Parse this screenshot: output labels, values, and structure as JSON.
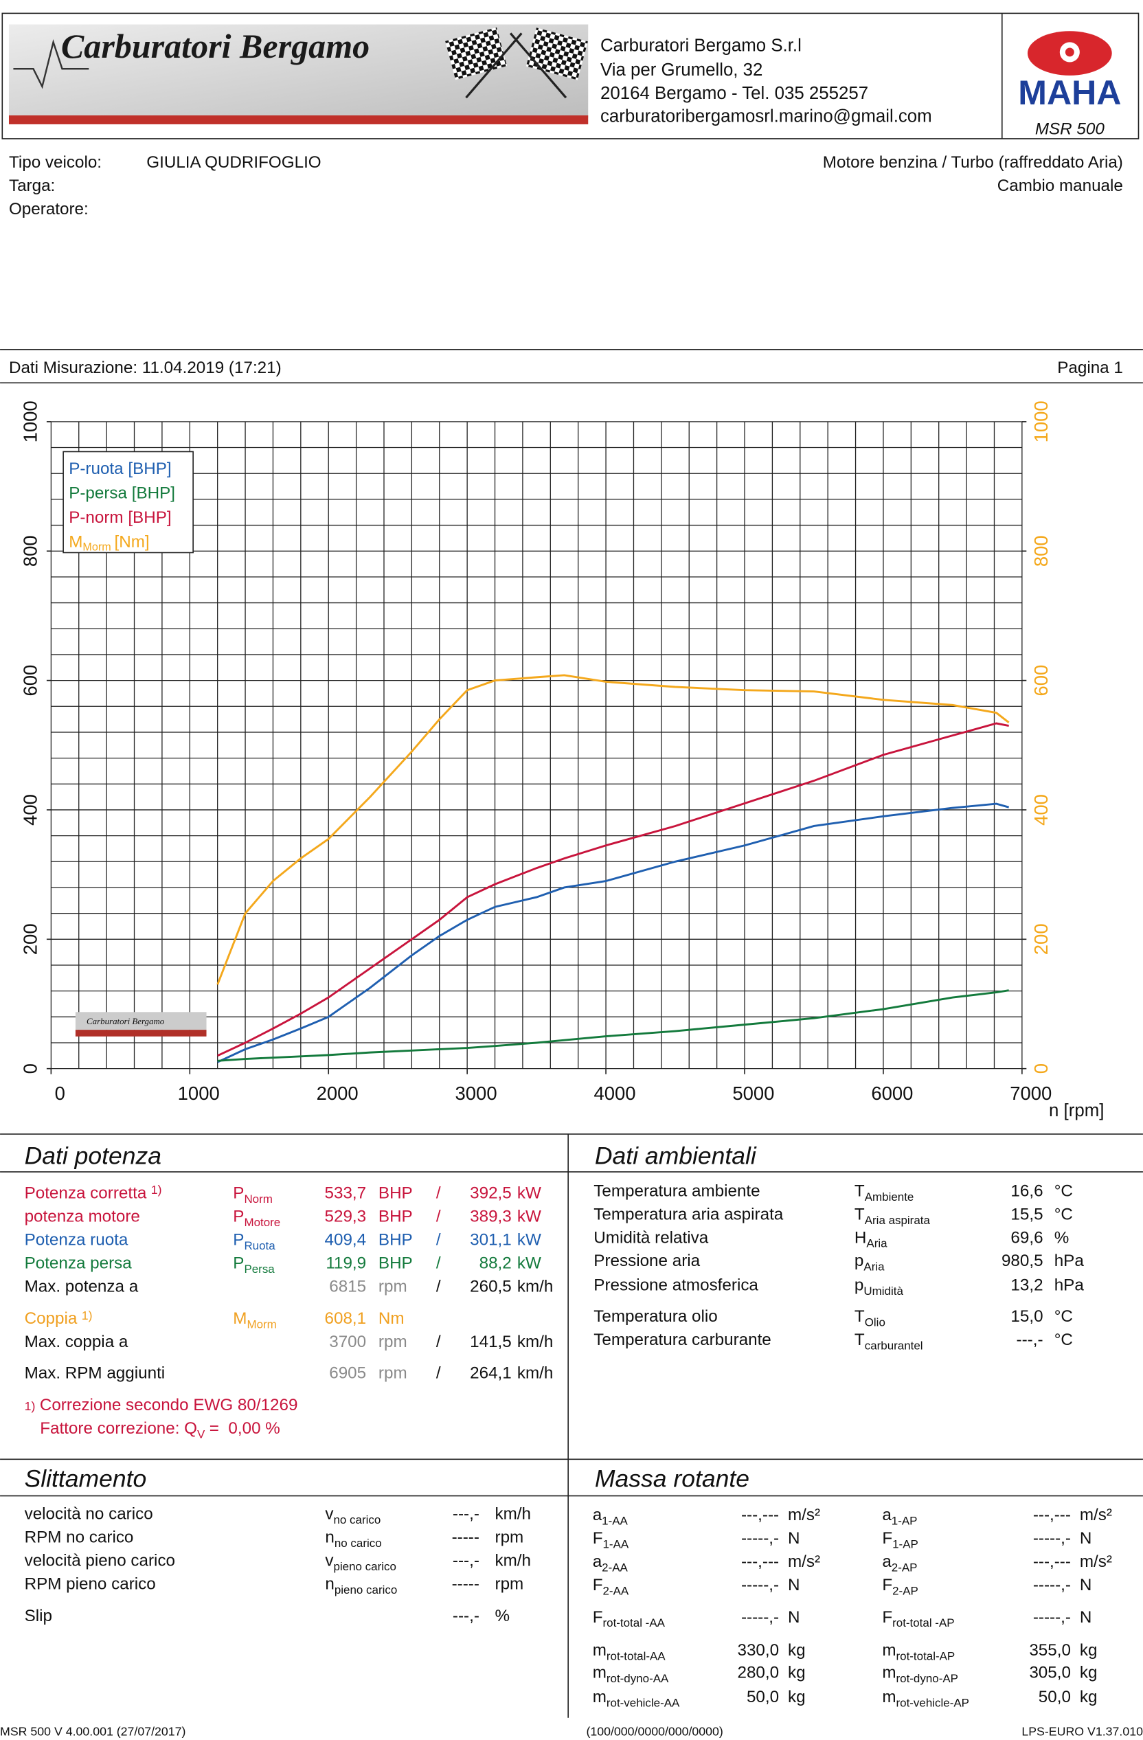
{
  "header": {
    "logo_text": "Carburatori Bergamo",
    "company": [
      "Carburatori Bergamo S.r.l",
      "Via per Grumello, 32",
      "20164 Bergamo - Tel. 035 255257",
      "carburatoribergamosrl.marino@gmail.com"
    ],
    "brand": "MAHA",
    "model": "MSR 500"
  },
  "vehicle": {
    "fields": [
      {
        "label": "Tipo veicolo:",
        "value": "GIULIA QUDRIFOGLIO"
      },
      {
        "label": "Targa:"
      },
      {
        "label": "Operatore:"
      }
    ],
    "engine": "Motore benzina / Turbo (raffreddato Aria)",
    "gearbox": "Cambio manuale"
  },
  "measurement": {
    "label": "Dati Misurazione: 11.04.2019 (17:21)",
    "page": "Pagina 1"
  },
  "chart_data": {
    "type": "line",
    "x_label": "n [rpm]",
    "x": [
      1200,
      1400,
      1600,
      1800,
      2000,
      2300,
      2600,
      2800,
      3000,
      3200,
      3500,
      3700,
      4000,
      4500,
      5000,
      5500,
      6000,
      6500,
      6815,
      6905
    ],
    "series": [
      {
        "name": "P-ruota [BHP]",
        "color": "#1f5fb0",
        "values": [
          10,
          30,
          45,
          62,
          80,
          125,
          175,
          205,
          230,
          250,
          265,
          280,
          290,
          320,
          345,
          375,
          390,
          403,
          409.4,
          404
        ]
      },
      {
        "name": "P-persa [BHP]",
        "color": "#137a3c",
        "values": [
          12,
          15,
          17,
          19,
          21,
          25,
          28,
          30,
          32,
          35,
          40,
          44,
          50,
          58,
          68,
          78,
          92,
          110,
          118,
          121
        ]
      },
      {
        "name": "P-norm [BHP]",
        "color": "#c8143c",
        "values": [
          20,
          40,
          62,
          85,
          110,
          155,
          200,
          230,
          265,
          285,
          310,
          325,
          345,
          375,
          410,
          445,
          485,
          515,
          533.7,
          530
        ]
      },
      {
        "name": "M",
        "name_sub": "Morm",
        "name_unit": "[Nm]",
        "color": "#f4a81c",
        "axis": "y2",
        "values": [
          130,
          240,
          290,
          325,
          355,
          420,
          490,
          540,
          585,
          600,
          605,
          608.1,
          598,
          590,
          585,
          583,
          570,
          562,
          550,
          535
        ]
      }
    ],
    "xlim": [
      0,
      7000
    ],
    "xticks": [
      0,
      1000,
      2000,
      3000,
      4000,
      5000,
      6000,
      7000
    ],
    "ylim": [
      0,
      1000
    ],
    "yticks": [
      0,
      200,
      400,
      600,
      800,
      1000
    ],
    "y2lim": [
      0,
      1000
    ],
    "y2ticks": [
      0,
      200,
      400,
      600,
      800,
      1000
    ],
    "y2_color": "#f4a81c",
    "grid": true,
    "minor_x_step": 200,
    "minor_y_step": 40,
    "legend": "upper left"
  },
  "power": {
    "title": "Dati potenza",
    "rows": [
      {
        "label": "Potenza corretta",
        "note": "1)",
        "sym": "P",
        "sub": "Norm",
        "v1": "533,7",
        "u1": "BHP",
        "sep": "/",
        "v2": "392,5",
        "u2": "kW",
        "color": "#c8143c"
      },
      {
        "label": "potenza motore",
        "sym": "P",
        "sub": "Motore",
        "v1": "529,3",
        "u1": "BHP",
        "sep": "/",
        "v2": "389,3",
        "u2": "kW",
        "color": "#c8143c"
      },
      {
        "label": "Potenza ruota",
        "sym": "P",
        "sub": "Ruota",
        "v1": "409,4",
        "u1": "BHP",
        "sep": "/",
        "v2": "301,1",
        "u2": "kW",
        "color": "#1f5fb0"
      },
      {
        "label": "Potenza persa",
        "sym": "P",
        "sub": "Persa",
        "v1": "119,9",
        "u1": "BHP",
        "sep": "/",
        "v2": "88,2",
        "u2": "kW",
        "color": "#137a3c"
      },
      {
        "label": "Max. potenza a",
        "v1": "6815",
        "u1": "rpm",
        "sep": "/",
        "v2": "260,5",
        "u2": "km/h",
        "color": "#111111",
        "v1_color": "#8a8a8a"
      },
      {
        "label": "Coppia",
        "note": "1)",
        "sym": "M",
        "sub": "Morm",
        "v1": "608,1",
        "u1": "Nm",
        "color": "#f0a020"
      },
      {
        "label": "Max. coppia a",
        "v1": "3700",
        "u1": "rpm",
        "sep": "/",
        "v2": "141,5",
        "u2": "km/h",
        "color": "#111111",
        "v1_color": "#8a8a8a"
      },
      {
        "label": "Max. RPM aggiunti",
        "v1": "6905",
        "u1": "rpm",
        "sep": "/",
        "v2": "264,1",
        "u2": "km/h",
        "color": "#111111",
        "v1_color": "#8a8a8a"
      }
    ],
    "note_mark": "1)",
    "footnote": "Correzione secondo EWG 80/1269",
    "factor_label": "Fattore correzione: Q",
    "factor_sub": "V",
    "factor_value": "=  0,00 %"
  },
  "ambient": {
    "title": "Dati ambientali",
    "rows": [
      {
        "label": "Temperatura ambiente",
        "sym": "T",
        "sub": "Ambiente",
        "value": "16,6",
        "unit": "°C"
      },
      {
        "label": "Temperatura aria aspirata",
        "sym": "T",
        "sub": "Aria aspirata",
        "value": "15,5",
        "unit": "°C"
      },
      {
        "label": "Umidità relativa",
        "sym": "H",
        "sub": "Aria",
        "value": "69,6",
        "unit": "%"
      },
      {
        "label": "Pressione aria",
        "sym": "p",
        "sub": "Aria",
        "value": "980,5",
        "unit": "hPa"
      },
      {
        "label": "Pressione atmosferica",
        "sym": "p",
        "sub": "Umidità",
        "value": "13,2",
        "unit": "hPa"
      },
      {
        "label": "Temperatura olio",
        "sym": "T",
        "sub": "Olio",
        "value": "15,0",
        "unit": "°C"
      },
      {
        "label": "Temperatura carburante",
        "sym": "T",
        "sub": "carburantel",
        "value": "---,-",
        "unit": "°C"
      }
    ]
  },
  "slip": {
    "title": "Slittamento",
    "rows": [
      {
        "label": "velocità no carico",
        "sym": "v",
        "sub": "no carico",
        "value": "---,-",
        "unit": "km/h"
      },
      {
        "label": "RPM no carico",
        "sym": "n",
        "sub": "no carico",
        "value": "-----",
        "unit": "rpm"
      },
      {
        "label": "velocità pieno carico",
        "sym": "v",
        "sub": "pieno carico",
        "value": "---,-",
        "unit": "km/h"
      },
      {
        "label": "RPM pieno carico",
        "sym": "n",
        "sub": "pieno carico",
        "value": "-----",
        "unit": "rpm"
      },
      {
        "label": "Slip",
        "value": "---,-",
        "unit": "%"
      }
    ]
  },
  "mass": {
    "title": "Massa rotante",
    "rows": [
      [
        {
          "sym": "a",
          "sub": "1-AA",
          "value": "---,---",
          "unit": "m/s²"
        },
        {
          "sym": "a",
          "sub": "1-AP",
          "value": "---,---",
          "unit": "m/s²"
        }
      ],
      [
        {
          "sym": "F",
          "sub": "1-AA",
          "value": "-----,-",
          "unit": "N"
        },
        {
          "sym": "F",
          "sub": "1-AP",
          "value": "-----,-",
          "unit": "N"
        }
      ],
      [
        {
          "sym": "a",
          "sub": "2-AA",
          "value": "---,---",
          "unit": "m/s²"
        },
        {
          "sym": "a",
          "sub": "2-AP",
          "value": "---,---",
          "unit": "m/s²"
        }
      ],
      [
        {
          "sym": "F",
          "sub": "2-AA",
          "value": "-----,-",
          "unit": "N"
        },
        {
          "sym": "F",
          "sub": "2-AP",
          "value": "-----,-",
          "unit": "N"
        }
      ],
      [
        {
          "sym": "F",
          "sub": "rot-total -AA",
          "value": "-----,-",
          "unit": "N"
        },
        {
          "sym": "F",
          "sub": "rot-total -AP",
          "value": "-----,-",
          "unit": "N"
        }
      ],
      [
        {
          "sym": "m",
          "sub": "rot-total-AA",
          "value": "330,0",
          "unit": "kg"
        },
        {
          "sym": "m",
          "sub": "rot-total-AP",
          "value": "355,0",
          "unit": "kg"
        }
      ],
      [
        {
          "sym": "m",
          "sub": "rot-dyno-AA",
          "value": "280,0",
          "unit": "kg"
        },
        {
          "sym": "m",
          "sub": "rot-dyno-AP",
          "value": "305,0",
          "unit": "kg"
        }
      ],
      [
        {
          "sym": "m",
          "sub": "rot-vehicle-AA",
          "value": "50,0",
          "unit": "kg"
        },
        {
          "sym": "m",
          "sub": "rot-vehicle-AP",
          "value": "50,0",
          "unit": "kg"
        }
      ]
    ]
  },
  "footer": [
    "MSR 500 V 4.00.001 (27/07/2017)",
    "(100/000/0000/000/0000)",
    "LPS-EURO V1.37.010"
  ]
}
